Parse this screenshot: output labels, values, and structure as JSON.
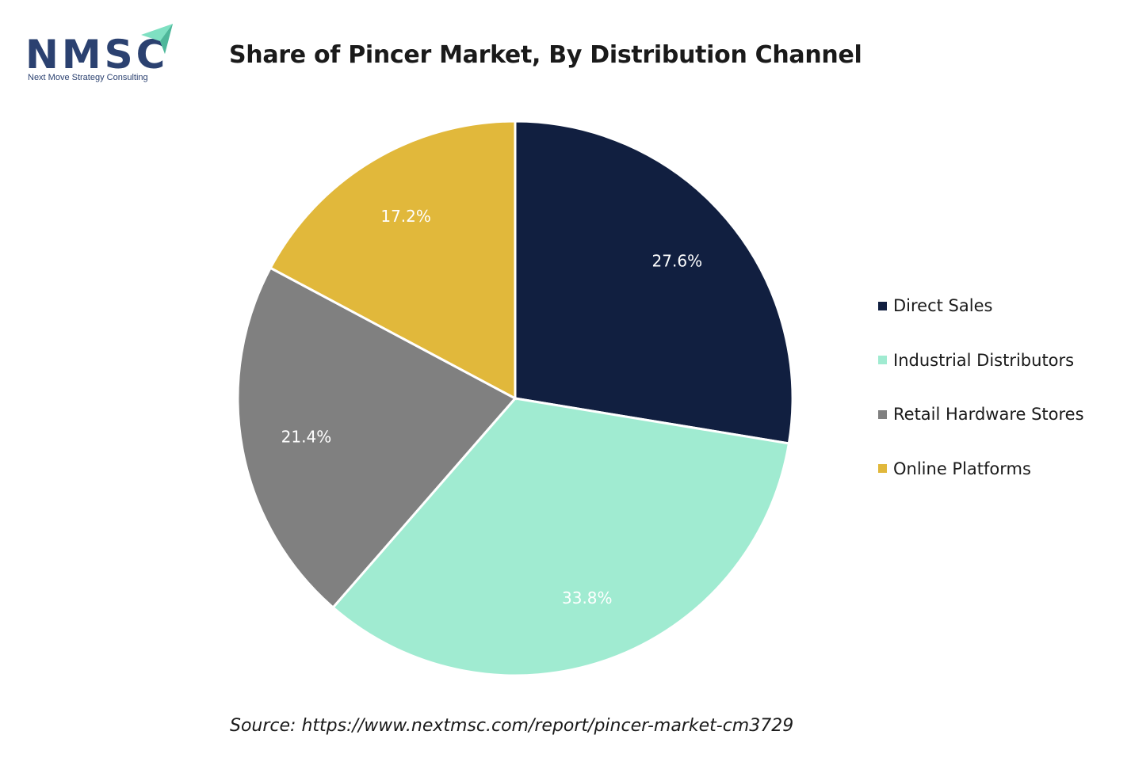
{
  "logo": {
    "text": "NMSC",
    "tagline": "Next Move Strategy Consulting",
    "text_color": "#2b4170",
    "accent_color": "#7fe0c2"
  },
  "chart_data": {
    "type": "pie",
    "title": "Share of Pincer Market, By Distribution Channel",
    "categories": [
      "Direct Sales",
      "Industrial Distributors",
      "Retail Hardware Stores",
      "Online Platforms"
    ],
    "values": [
      27.6,
      33.8,
      21.4,
      17.2
    ],
    "value_labels": [
      "27.6%",
      "33.8%",
      "21.4%",
      "17.2%"
    ],
    "colors": [
      "#111f40",
      "#a0ebd1",
      "#808080",
      "#e1b83b"
    ],
    "start_angle": "12 o'clock",
    "direction": "clockwise",
    "legend_placement": "right"
  },
  "source": "Source: https://www.nextmsc.com/report/pincer-market-cm3729"
}
